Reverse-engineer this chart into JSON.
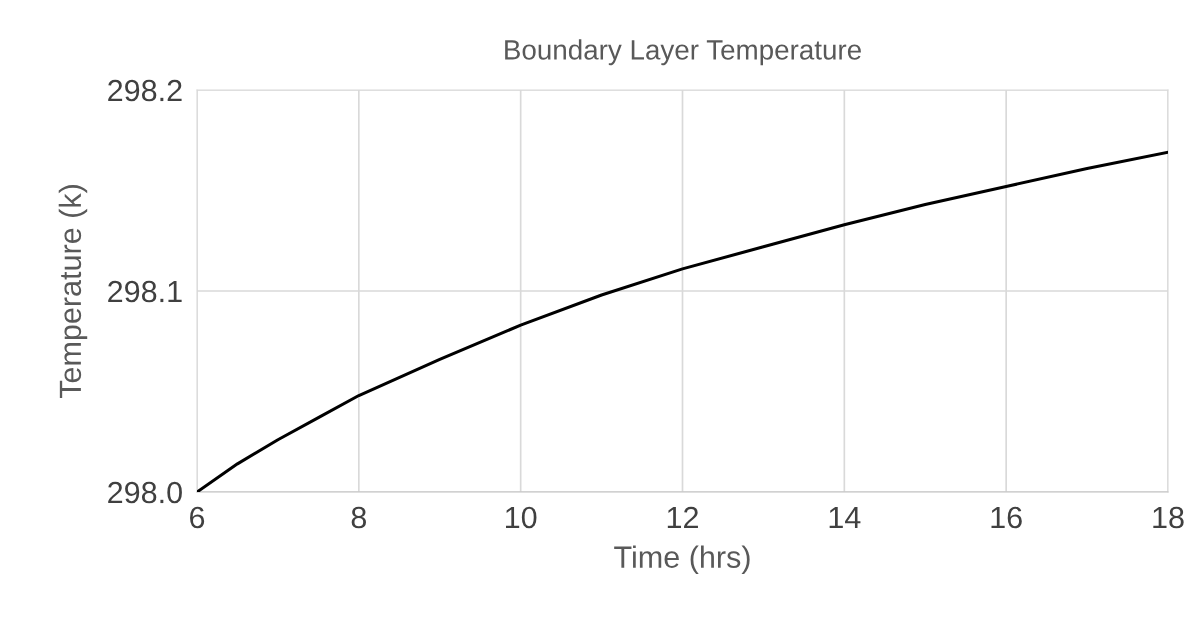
{
  "chart_data": {
    "type": "line",
    "title": "Boundary Layer Temperature",
    "xlabel": "Time (hrs)",
    "ylabel": "Temperature (k)",
    "x": [
      6,
      6.5,
      7,
      7.5,
      8,
      9,
      10,
      11,
      12,
      13,
      14,
      15,
      16,
      17,
      18
    ],
    "series": [
      {
        "color": "#000000",
        "values": [
          298.0,
          298.014,
          298.026,
          298.037,
          298.048,
          298.066,
          298.083,
          298.098,
          298.111,
          298.122,
          298.133,
          298.143,
          298.152,
          298.161,
          298.169
        ]
      }
    ],
    "xlim": [
      6,
      18
    ],
    "xticks": [
      6,
      8,
      10,
      12,
      14,
      16,
      18
    ],
    "ylim": [
      298.0,
      298.2
    ],
    "yticks": [
      {
        "value": 298.0,
        "label": "298.0"
      },
      {
        "value": 298.1,
        "label": "298.1"
      },
      {
        "value": 298.2,
        "label": "298.2"
      }
    ],
    "grid": true,
    "marker": "none",
    "line_style": "solid"
  }
}
